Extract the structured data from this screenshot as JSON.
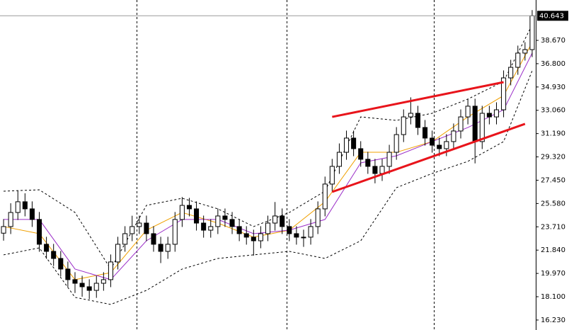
{
  "chart_data": {
    "type": "candlestick",
    "ylim": [
      15.43,
      41.91
    ],
    "yticks": [
      {
        "value": 38.67,
        "label": "38.670"
      },
      {
        "value": 36.8,
        "label": "36.800"
      },
      {
        "value": 34.93,
        "label": "34.930"
      },
      {
        "value": 33.06,
        "label": "33.060"
      },
      {
        "value": 31.19,
        "label": "31.190"
      },
      {
        "value": 29.32,
        "label": "29.320"
      },
      {
        "value": 27.45,
        "label": "27.450"
      },
      {
        "value": 25.58,
        "label": "25.580"
      },
      {
        "value": 23.71,
        "label": "23.710"
      },
      {
        "value": 21.84,
        "label": "21.840"
      },
      {
        "value": 19.97,
        "label": "19.970"
      },
      {
        "value": 18.1,
        "label": "18.100"
      },
      {
        "value": 16.23,
        "label": "16.230"
      }
    ],
    "last_price": 40.643,
    "up_color": "#ffffff",
    "down_color": "#000000",
    "open": [
      23.2,
      23.73,
      24.86,
      25.72,
      25.15,
      24.3,
      22.31,
      21.74,
      21.17,
      20.32,
      19.47,
      19.18,
      18.9,
      18.61,
      19.18,
      19.47,
      20.89,
      22.31,
      23.16,
      23.73,
      24.01,
      23.16,
      22.31,
      21.74,
      22.31,
      24.3,
      25.43,
      25.15,
      24.01,
      23.44,
      23.73,
      24.58,
      24.3,
      23.73,
      23.16,
      22.88,
      22.59,
      23.16,
      24.01,
      24.58,
      23.73,
      23.16,
      22.88,
      22.88,
      23.73,
      25.15,
      27.14,
      28.56,
      29.69,
      30.83,
      29.98,
      29.13,
      28.56,
      27.99,
      28.56,
      29.69,
      31.11,
      32.53,
      32.82,
      31.68,
      30.83,
      30.26,
      29.98,
      30.55,
      31.4,
      32.53,
      33.39,
      30.55,
      32.82,
      32.53,
      33.1,
      35.66,
      36.51,
      37.65,
      37.93
    ],
    "high": [
      24.33,
      25.6,
      26.6,
      26.4,
      25.75,
      24.9,
      22.91,
      22.34,
      21.77,
      20.92,
      20.07,
      19.78,
      19.5,
      19.78,
      20.07,
      21.49,
      22.91,
      23.76,
      24.6,
      24.61,
      24.61,
      23.76,
      22.91,
      22.91,
      24.9,
      26.1,
      26.03,
      25.75,
      24.61,
      24.33,
      25.18,
      25.18,
      24.9,
      24.33,
      23.76,
      23.48,
      23.76,
      24.61,
      25.7,
      25.18,
      24.33,
      23.76,
      23.48,
      24.33,
      25.75,
      27.74,
      29.16,
      30.4,
      31.43,
      31.43,
      30.58,
      29.73,
      29.16,
      29.16,
      30.29,
      31.71,
      33.13,
      34.1,
      33.42,
      32.28,
      31.43,
      30.86,
      31.15,
      32.0,
      33.13,
      33.99,
      33.99,
      33.42,
      33.42,
      33.7,
      36.26,
      37.11,
      38.25,
      38.53,
      41.1
    ],
    "low": [
      22.6,
      23.13,
      24.26,
      24.55,
      23.7,
      21.71,
      21.14,
      20.57,
      19.72,
      18.87,
      18.4,
      18.1,
      17.9,
      18.01,
      18.58,
      18.87,
      20.29,
      21.71,
      22.56,
      23.13,
      22.56,
      21.71,
      20.8,
      21.14,
      21.71,
      23.7,
      24.55,
      23.41,
      22.84,
      22.84,
      23.13,
      23.7,
      23.13,
      22.56,
      22.28,
      21.4,
      21.99,
      22.56,
      23.41,
      23.13,
      22.56,
      22.28,
      22.1,
      22.28,
      23.13,
      24.55,
      26.54,
      27.96,
      29.09,
      29.38,
      28.53,
      27.96,
      27.2,
      27.39,
      27.96,
      29.09,
      30.51,
      31.93,
      31.08,
      30.23,
      29.66,
      29.38,
      29.38,
      29.95,
      30.8,
      31.93,
      28.8,
      29.95,
      31.93,
      31.93,
      32.5,
      35.06,
      35.91,
      37.05,
      37.33
    ],
    "close": [
      23.73,
      24.86,
      25.72,
      25.15,
      24.3,
      22.31,
      21.74,
      21.17,
      20.32,
      19.47,
      19.18,
      18.9,
      18.61,
      19.18,
      19.47,
      20.89,
      22.31,
      23.16,
      23.73,
      24.01,
      23.16,
      22.31,
      21.74,
      22.31,
      24.3,
      25.43,
      25.15,
      24.01,
      23.44,
      23.73,
      24.58,
      24.3,
      23.73,
      23.16,
      22.88,
      22.59,
      23.16,
      24.01,
      24.58,
      23.73,
      23.16,
      22.88,
      22.88,
      23.73,
      25.15,
      27.14,
      28.56,
      29.69,
      30.83,
      29.98,
      29.13,
      28.56,
      27.99,
      28.56,
      29.69,
      31.11,
      32.53,
      32.82,
      31.68,
      30.83,
      30.26,
      29.98,
      30.55,
      31.4,
      32.53,
      33.39,
      30.55,
      32.82,
      32.53,
      33.1,
      35.66,
      36.51,
      37.65,
      37.93,
      40.64
    ],
    "lines": [
      {
        "color": "#000000",
        "style": "dashed",
        "x": [
          0,
          5,
          10,
          15,
          20,
          25,
          30,
          35,
          40,
          45,
          50,
          55,
          60,
          65,
          70,
          74
        ],
        "values": [
          26.57,
          26.68,
          24.86,
          20.32,
          25.43,
          26.0,
          25.15,
          23.73,
          24.86,
          26.57,
          32.53,
          32.25,
          32.82,
          33.96,
          35.38,
          39.92
        ]
      },
      {
        "color": "#000000",
        "style": "dashed",
        "x": [
          0,
          5,
          10,
          15,
          20,
          25,
          30,
          35,
          40,
          45,
          50,
          55,
          60,
          65,
          70,
          74
        ],
        "values": [
          21.46,
          22.02,
          18.05,
          17.48,
          18.61,
          20.32,
          21.17,
          21.46,
          21.74,
          21.17,
          22.59,
          26.85,
          27.99,
          28.96,
          30.55,
          36.23
        ]
      },
      {
        "color": "#f0a000",
        "style": "solid",
        "x": [
          0,
          5,
          10,
          15,
          20,
          25,
          30,
          35,
          40,
          45,
          50,
          55,
          60,
          65,
          70,
          74
        ],
        "values": [
          23.73,
          23.16,
          19.47,
          20.03,
          23.44,
          24.86,
          24.01,
          22.88,
          23.44,
          25.72,
          29.69,
          29.69,
          30.55,
          32.53,
          34.24,
          38.5
        ]
      },
      {
        "color": "#9b2fc8",
        "style": "solid",
        "x": [
          0,
          5,
          10,
          15,
          20,
          25,
          30,
          35,
          40,
          45,
          50,
          55,
          60,
          65,
          70,
          74
        ],
        "values": [
          24.3,
          24.3,
          20.32,
          19.47,
          22.59,
          24.3,
          24.3,
          23.16,
          23.44,
          24.3,
          28.84,
          29.41,
          30.55,
          31.68,
          33.1,
          37.65
        ]
      }
    ],
    "trendlines": [
      {
        "color": "#e8141b",
        "x": [
          46,
          70
        ],
        "y": [
          32.53,
          35.32
        ]
      },
      {
        "color": "#e8141b",
        "x": [
          46,
          73
        ],
        "y": [
          26.51,
          31.97
        ]
      }
    ]
  }
}
